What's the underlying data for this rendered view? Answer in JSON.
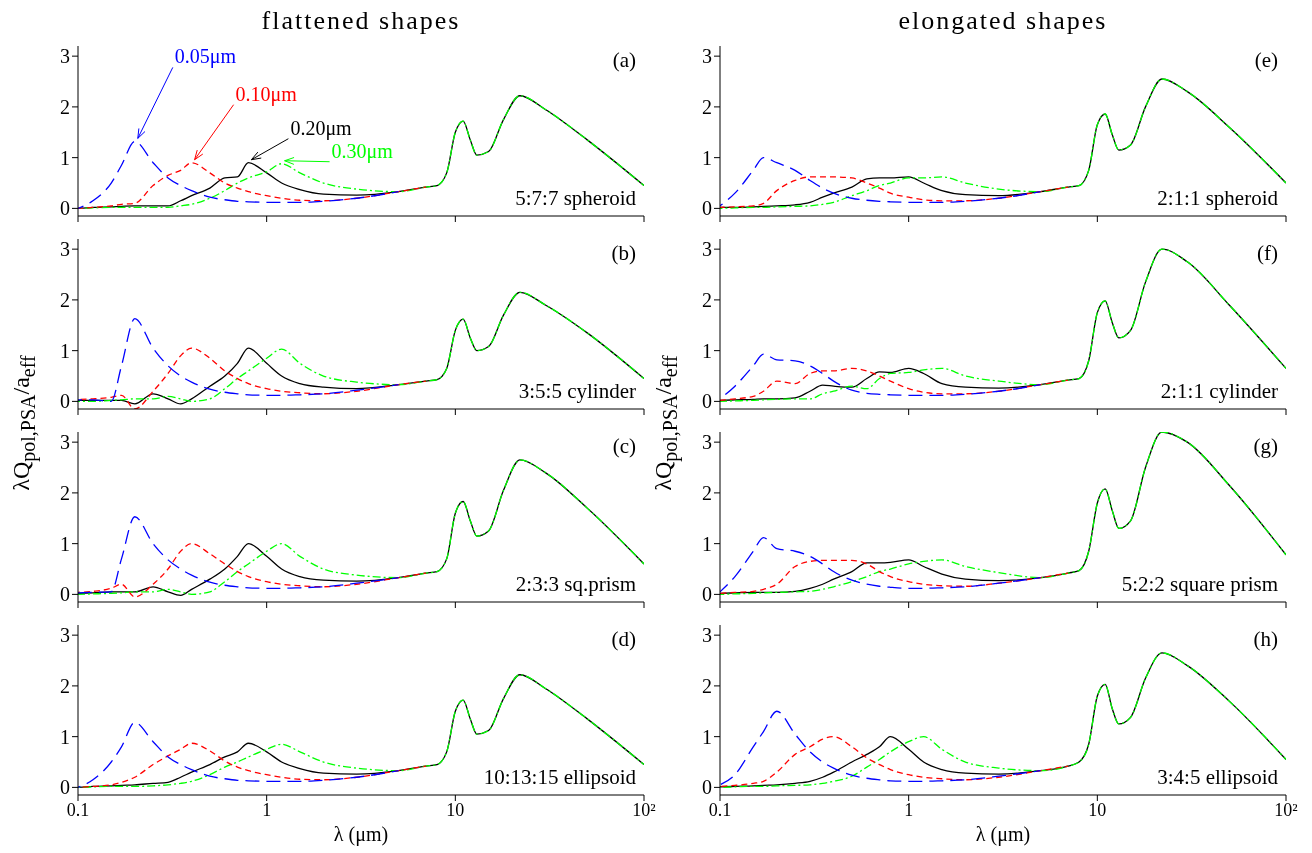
{
  "chart_data": [
    {
      "type": "line",
      "title": "flattened shapes",
      "annotations": [
        "(a)",
        "5:7:7 spheroid"
      ],
      "xlim": [
        0.1,
        100
      ],
      "xticks": [
        0.1,
        1,
        10,
        100
      ],
      "ylim": [
        -0.15,
        3.2
      ],
      "yticks": [
        0,
        1,
        2,
        3
      ],
      "log": "x",
      "tick_labels": "y",
      "marker": "none",
      "x": [
        0.1,
        0.12,
        0.15,
        0.17,
        0.2,
        0.25,
        0.3,
        0.35,
        0.4,
        0.5,
        0.6,
        0.7,
        0.8,
        1,
        1.2,
        1.5,
        2,
        3,
        5,
        7,
        8,
        9,
        10,
        11,
        12,
        13,
        15,
        18,
        22,
        30,
        50,
        100
      ],
      "series": [
        {
          "name": "0.05μm",
          "color": "#0000ff",
          "line_style": "dashed",
          "values": [
            0,
            0.15,
            0.5,
            0.85,
            1.32,
            0.9,
            0.6,
            0.45,
            0.35,
            0.22,
            0.17,
            0.14,
            0.13,
            0.12,
            0.12,
            0.12,
            0.14,
            0.2,
            0.33,
            null,
            null,
            null,
            null,
            null,
            null,
            null,
            null,
            null,
            null,
            null,
            null,
            null
          ]
        },
        {
          "name": "0.10μm",
          "color": "#ff0000",
          "line_style": "dashed",
          "values": [
            0,
            0.02,
            0.05,
            0.08,
            0.1,
            0.45,
            0.65,
            0.75,
            0.9,
            0.7,
            0.5,
            0.4,
            0.33,
            0.25,
            0.2,
            0.16,
            0.15,
            0.2,
            0.33,
            0.42,
            null,
            null,
            null,
            null,
            null,
            null,
            null,
            null,
            null,
            null,
            null,
            null
          ]
        },
        {
          "name": "0.20μm",
          "color": "#000000",
          "line_style": "solid",
          "values": [
            0,
            0.02,
            0.03,
            0.04,
            0.05,
            0.05,
            0.05,
            0.15,
            0.25,
            0.4,
            0.6,
            0.62,
            0.9,
            0.7,
            0.5,
            0.37,
            0.28,
            0.26,
            0.33,
            0.42,
            0.45,
            0.7,
            1.5,
            1.72,
            1.35,
            1.05,
            1.12,
            1.75,
            2.22,
            1.95,
            1.35,
            0.45
          ]
        },
        {
          "name": "0.30μm",
          "color": "#00ff00",
          "line_style": "dashed",
          "values": [
            0,
            0.01,
            0.02,
            0.02,
            0.02,
            0.02,
            0.02,
            0.05,
            0.08,
            0.2,
            0.35,
            0.5,
            0.6,
            0.72,
            0.88,
            0.7,
            0.5,
            0.38,
            0.33,
            0.42,
            0.45,
            0.7,
            1.5,
            1.72,
            1.35,
            1.05,
            1.12,
            1.75,
            2.22,
            1.95,
            1.35,
            0.45
          ]
        }
      ]
    },
    {
      "type": "line",
      "ylabel": "λQ$_{pol,PSA}$/a$_{eff}$",
      "annotations": [
        "(b)",
        "3:5:5 cylinder"
      ],
      "xlim": [
        0.1,
        100
      ],
      "xticks": [
        0.1,
        1,
        10,
        100
      ],
      "ylim": [
        -0.15,
        3.2
      ],
      "yticks": [
        0,
        1,
        2,
        3
      ],
      "log": "x",
      "tick_labels": "y",
      "marker": "none",
      "x": [
        0.1,
        0.12,
        0.15,
        0.17,
        0.2,
        0.25,
        0.3,
        0.35,
        0.4,
        0.5,
        0.6,
        0.7,
        0.8,
        1,
        1.2,
        1.5,
        2,
        3,
        5,
        7,
        8,
        9,
        10,
        11,
        12,
        13,
        15,
        18,
        22,
        30,
        50,
        100
      ],
      "series": [
        {
          "color": "#0000ff",
          "line_style": "dashed",
          "values": [
            0.03,
            0.03,
            0.0,
            0.7,
            1.63,
            1.05,
            0.7,
            0.5,
            0.38,
            0.24,
            0.18,
            0.15,
            0.13,
            0.12,
            0.12,
            0.13,
            0.15,
            0.22,
            0.33,
            null,
            null,
            null,
            null,
            null,
            null,
            null,
            null,
            null,
            null,
            null,
            null,
            null
          ]
        },
        {
          "color": "#ff0000",
          "line_style": "dashed",
          "values": [
            0.04,
            0.05,
            0.08,
            0.12,
            -0.15,
            0.2,
            0.55,
            0.9,
            1.05,
            0.85,
            0.6,
            0.45,
            0.35,
            0.25,
            0.2,
            0.17,
            0.15,
            0.2,
            0.33,
            0.4,
            null,
            null,
            null,
            null,
            null,
            null,
            null,
            null,
            null,
            null,
            null,
            null
          ]
        },
        {
          "color": "#000000",
          "line_style": "solid",
          "values": [
            0.02,
            0.02,
            0.02,
            0.02,
            -0.05,
            0.15,
            0.05,
            -0.05,
            0.05,
            0.3,
            0.5,
            0.75,
            1.05,
            0.75,
            0.5,
            0.35,
            0.28,
            0.25,
            0.33,
            0.4,
            0.43,
            0.65,
            1.4,
            1.62,
            1.25,
            1.0,
            1.08,
            1.7,
            2.15,
            1.9,
            1.35,
            0.45
          ]
        },
        {
          "color": "#00ff00",
          "line_style": "dashed",
          "values": [
            0,
            0,
            0.02,
            0.03,
            0.05,
            0.05,
            0.1,
            0.05,
            0,
            0.05,
            0.25,
            0.45,
            0.6,
            0.85,
            1.03,
            0.75,
            0.5,
            0.38,
            0.33,
            0.4,
            0.43,
            0.65,
            1.4,
            1.62,
            1.25,
            1.0,
            1.08,
            1.7,
            2.15,
            1.9,
            1.35,
            0.45
          ]
        }
      ]
    },
    {
      "type": "line",
      "annotations": [
        "(c)",
        "2:3:3 sq.prism"
      ],
      "xlim": [
        0.1,
        100
      ],
      "xticks": [
        0.1,
        1,
        10,
        100
      ],
      "ylim": [
        -0.15,
        3.2
      ],
      "yticks": [
        0,
        1,
        2,
        3
      ],
      "log": "x",
      "tick_labels": "y",
      "marker": "none",
      "x": [
        0.1,
        0.12,
        0.15,
        0.17,
        0.2,
        0.25,
        0.3,
        0.35,
        0.4,
        0.5,
        0.6,
        0.7,
        0.8,
        1,
        1.2,
        1.5,
        2,
        3,
        5,
        7,
        8,
        9,
        10,
        11,
        12,
        13,
        15,
        18,
        22,
        30,
        50,
        100
      ],
      "series": [
        {
          "color": "#0000ff",
          "line_style": "dashed",
          "values": [
            0.03,
            0.04,
            0.05,
            0.7,
            1.53,
            1.0,
            0.68,
            0.5,
            0.38,
            0.24,
            0.18,
            0.15,
            0.13,
            0.12,
            0.12,
            0.13,
            0.15,
            0.22,
            0.33,
            null,
            null,
            null,
            null,
            null,
            null,
            null,
            null,
            null,
            null,
            null,
            null,
            null
          ]
        },
        {
          "color": "#ff0000",
          "line_style": "dashed",
          "values": [
            0.04,
            0.06,
            0.12,
            0.2,
            -0.05,
            0.2,
            0.5,
            0.85,
            1.0,
            0.8,
            0.6,
            0.45,
            0.35,
            0.25,
            0.2,
            0.17,
            0.15,
            0.2,
            0.33,
            0.42,
            null,
            null,
            null,
            null,
            null,
            null,
            null,
            null,
            null,
            null,
            null,
            null
          ]
        },
        {
          "color": "#000000",
          "line_style": "solid",
          "values": [
            0.02,
            0.03,
            0.05,
            0.05,
            0.05,
            0.15,
            0.05,
            -0.02,
            0.1,
            0.3,
            0.5,
            0.75,
            1.0,
            0.75,
            0.5,
            0.35,
            0.28,
            0.26,
            0.33,
            0.42,
            0.45,
            0.7,
            1.6,
            1.83,
            1.45,
            1.15,
            1.25,
            2.05,
            2.65,
            2.4,
            1.7,
            0.6
          ]
        },
        {
          "color": "#00ff00",
          "line_style": "dashed",
          "values": [
            0,
            0.01,
            0.02,
            0.03,
            0.05,
            0.05,
            0.1,
            0.05,
            0,
            0.05,
            0.25,
            0.45,
            0.6,
            0.85,
            1.0,
            0.75,
            0.5,
            0.38,
            0.33,
            0.42,
            0.45,
            0.7,
            1.6,
            1.83,
            1.45,
            1.15,
            1.25,
            2.05,
            2.65,
            2.4,
            1.7,
            0.6
          ]
        }
      ]
    },
    {
      "type": "line",
      "xlabel": "λ (μm)",
      "annotations": [
        "(d)",
        "10:13:15 ellipsoid"
      ],
      "xlim": [
        0.1,
        100
      ],
      "xticks": [
        0.1,
        1,
        10,
        {
          "value": 100,
          "label": "10²"
        }
      ],
      "ylim": [
        -0.15,
        3.2
      ],
      "yticks": [
        0,
        1,
        2,
        3
      ],
      "log": "x",
      "marker": "none",
      "x": [
        0.1,
        0.12,
        0.15,
        0.17,
        0.2,
        0.25,
        0.3,
        0.35,
        0.4,
        0.5,
        0.6,
        0.7,
        0.8,
        1,
        1.2,
        1.5,
        2,
        3,
        5,
        7,
        8,
        9,
        10,
        11,
        12,
        13,
        15,
        18,
        22,
        30,
        50,
        100
      ],
      "series": [
        {
          "color": "#0000ff",
          "line_style": "dashed",
          "values": [
            0,
            0.15,
            0.5,
            0.8,
            1.28,
            0.9,
            0.6,
            0.45,
            0.35,
            0.22,
            0.17,
            0.14,
            0.13,
            0.12,
            0.12,
            0.12,
            0.14,
            0.2,
            0.33,
            null,
            null,
            null,
            null,
            null,
            null,
            null,
            null,
            null,
            null,
            null,
            null,
            null
          ]
        },
        {
          "color": "#ff0000",
          "line_style": "dashed",
          "values": [
            0,
            0.02,
            0.05,
            0.1,
            0.2,
            0.45,
            0.62,
            0.75,
            0.87,
            0.72,
            0.52,
            0.4,
            0.33,
            0.25,
            0.2,
            0.16,
            0.15,
            0.2,
            0.33,
            0.42,
            null,
            null,
            null,
            null,
            null,
            null,
            null,
            null,
            null,
            null,
            null,
            null
          ]
        },
        {
          "color": "#000000",
          "line_style": "solid",
          "values": [
            0,
            0.02,
            0.03,
            0.04,
            0.05,
            0.08,
            0.1,
            0.2,
            0.3,
            0.45,
            0.6,
            0.7,
            0.87,
            0.7,
            0.5,
            0.37,
            0.28,
            0.26,
            0.33,
            0.42,
            0.45,
            0.7,
            1.5,
            1.72,
            1.35,
            1.05,
            1.12,
            1.75,
            2.22,
            1.95,
            1.35,
            0.45
          ]
        },
        {
          "color": "#00ff00",
          "line_style": "dashed",
          "values": [
            0,
            0.01,
            0.02,
            0.02,
            0.02,
            0.03,
            0.05,
            0.08,
            0.12,
            0.25,
            0.4,
            0.5,
            0.6,
            0.75,
            0.85,
            0.7,
            0.5,
            0.38,
            0.33,
            0.42,
            0.45,
            0.7,
            1.5,
            1.72,
            1.35,
            1.05,
            1.12,
            1.75,
            2.22,
            1.95,
            1.35,
            0.45
          ]
        }
      ]
    },
    {
      "type": "line",
      "title": "elongated shapes",
      "annotations": [
        "(e)",
        "2:1:1 spheroid"
      ],
      "xlim": [
        0.1,
        100
      ],
      "xticks": [
        0.1,
        1,
        10,
        100
      ],
      "ylim": [
        -0.15,
        3.2
      ],
      "yticks": [
        0,
        1,
        2,
        3
      ],
      "log": "x",
      "tick_labels": "y",
      "marker": "none",
      "x": [
        0.1,
        0.12,
        0.15,
        0.17,
        0.2,
        0.25,
        0.3,
        0.35,
        0.4,
        0.5,
        0.6,
        0.7,
        0.8,
        1,
        1.2,
        1.5,
        2,
        3,
        5,
        7,
        8,
        9,
        10,
        11,
        12,
        13,
        15,
        18,
        22,
        30,
        50,
        100
      ],
      "series": [
        {
          "color": "#0000ff",
          "line_style": "dashed",
          "values": [
            0.05,
            0.3,
            0.75,
            1.0,
            0.9,
            0.75,
            0.55,
            0.4,
            0.3,
            0.2,
            0.16,
            0.14,
            0.13,
            0.12,
            0.12,
            0.12,
            0.14,
            0.2,
            0.33,
            null,
            null,
            null,
            null,
            null,
            null,
            null,
            null,
            null,
            null,
            null,
            null,
            null
          ]
        },
        {
          "color": "#ff0000",
          "line_style": "dashed",
          "values": [
            0.02,
            0.03,
            0.05,
            0.1,
            0.35,
            0.55,
            0.62,
            0.62,
            0.62,
            0.6,
            0.5,
            0.4,
            0.3,
            0.22,
            0.17,
            0.15,
            0.15,
            0.2,
            0.33,
            0.42,
            null,
            null,
            null,
            null,
            null,
            null,
            null,
            null,
            null,
            null,
            null,
            null
          ]
        },
        {
          "color": "#000000",
          "line_style": "solid",
          "values": [
            0.02,
            0.02,
            0.03,
            0.04,
            0.05,
            0.07,
            0.12,
            0.22,
            0.3,
            0.42,
            0.58,
            0.6,
            0.6,
            0.62,
            0.5,
            0.35,
            0.27,
            0.25,
            0.33,
            0.42,
            0.45,
            0.75,
            1.65,
            1.86,
            1.45,
            1.15,
            1.25,
            2.0,
            2.55,
            2.3,
            1.6,
            0.5
          ]
        },
        {
          "color": "#00ff00",
          "line_style": "dashed",
          "values": [
            0,
            0.01,
            0.02,
            0.02,
            0.03,
            0.04,
            0.05,
            0.08,
            0.12,
            0.25,
            0.35,
            0.45,
            0.5,
            0.6,
            0.6,
            0.62,
            0.5,
            0.38,
            0.33,
            0.42,
            0.45,
            0.75,
            1.65,
            1.86,
            1.45,
            1.15,
            1.25,
            2.0,
            2.55,
            2.3,
            1.6,
            0.5
          ]
        }
      ]
    },
    {
      "type": "line",
      "ylabel": "λQ$_{pol,PSA}$/a$_{eff}$",
      "annotations": [
        "(f)",
        "2:1:1 cylinder"
      ],
      "xlim": [
        0.1,
        100
      ],
      "xticks": [
        0.1,
        1,
        10,
        100
      ],
      "ylim": [
        -0.15,
        3.2
      ],
      "yticks": [
        0,
        1,
        2,
        3
      ],
      "log": "x",
      "tick_labels": "y",
      "marker": "none",
      "x": [
        0.1,
        0.12,
        0.15,
        0.17,
        0.2,
        0.25,
        0.3,
        0.35,
        0.4,
        0.5,
        0.6,
        0.7,
        0.8,
        1,
        1.2,
        1.5,
        2,
        3,
        5,
        7,
        8,
        9,
        10,
        11,
        12,
        13,
        15,
        18,
        22,
        30,
        50,
        100
      ],
      "series": [
        {
          "color": "#0000ff",
          "line_style": "dashed",
          "values": [
            0.05,
            0.3,
            0.7,
            0.93,
            0.82,
            0.8,
            0.7,
            0.55,
            0.4,
            0.22,
            0.16,
            0.14,
            0.13,
            0.12,
            0.12,
            0.12,
            0.14,
            0.2,
            0.33,
            null,
            null,
            null,
            null,
            null,
            null,
            null,
            null,
            null,
            null,
            null,
            null,
            null
          ]
        },
        {
          "color": "#ff0000",
          "line_style": "dashed",
          "values": [
            0.02,
            0.05,
            0.1,
            0.2,
            0.4,
            0.35,
            0.55,
            0.6,
            0.6,
            0.65,
            0.6,
            0.5,
            0.4,
            0.25,
            0.18,
            0.15,
            0.15,
            0.2,
            0.33,
            0.42,
            null,
            null,
            null,
            null,
            null,
            null,
            null,
            null,
            null,
            null,
            null,
            null
          ]
        },
        {
          "color": "#000000",
          "line_style": "solid",
          "values": [
            0.02,
            0.03,
            0.04,
            0.05,
            0.05,
            0.07,
            0.2,
            0.32,
            0.3,
            0.28,
            0.45,
            0.58,
            0.57,
            0.65,
            0.55,
            0.35,
            0.28,
            0.26,
            0.33,
            0.42,
            0.45,
            0.8,
            1.75,
            1.98,
            1.55,
            1.25,
            1.4,
            2.35,
            3.0,
            2.75,
            1.9,
            0.65
          ]
        },
        {
          "color": "#00ff00",
          "line_style": "dashed",
          "values": [
            0,
            0.01,
            0.02,
            0.03,
            0.04,
            0.05,
            0.05,
            0.15,
            0.2,
            0.3,
            0.25,
            0.45,
            0.55,
            0.57,
            0.62,
            0.65,
            0.5,
            0.4,
            0.33,
            0.42,
            0.45,
            0.8,
            1.75,
            1.98,
            1.55,
            1.25,
            1.4,
            2.35,
            3.0,
            2.75,
            1.9,
            0.65
          ]
        }
      ]
    },
    {
      "type": "line",
      "annotations": [
        "(g)",
        "5:2:2 square prism"
      ],
      "xlim": [
        0.1,
        100
      ],
      "xticks": [
        0.1,
        1,
        10,
        100
      ],
      "ylim": [
        -0.15,
        3.2
      ],
      "yticks": [
        0,
        1,
        2,
        3
      ],
      "log": "x",
      "tick_labels": "y",
      "marker": "none",
      "x": [
        0.1,
        0.12,
        0.15,
        0.17,
        0.2,
        0.25,
        0.3,
        0.35,
        0.4,
        0.5,
        0.6,
        0.7,
        0.8,
        1,
        1.2,
        1.5,
        2,
        3,
        5,
        7,
        8,
        9,
        10,
        11,
        12,
        13,
        15,
        18,
        22,
        30,
        50,
        100
      ],
      "series": [
        {
          "color": "#0000ff",
          "line_style": "dashed",
          "values": [
            0.05,
            0.35,
            0.85,
            1.12,
            0.9,
            0.85,
            0.75,
            0.6,
            0.45,
            0.28,
            0.2,
            0.16,
            0.14,
            0.12,
            0.12,
            0.13,
            0.15,
            0.22,
            0.33,
            null,
            null,
            null,
            null,
            null,
            null,
            null,
            null,
            null,
            null,
            null,
            null,
            null
          ]
        },
        {
          "color": "#ff0000",
          "line_style": "dashed",
          "values": [
            0.02,
            0.04,
            0.06,
            0.1,
            0.2,
            0.55,
            0.65,
            0.67,
            0.67,
            0.67,
            0.6,
            0.45,
            0.35,
            0.25,
            0.2,
            0.17,
            0.16,
            0.22,
            0.33,
            0.42,
            null,
            null,
            null,
            null,
            null,
            null,
            null,
            null,
            null,
            null,
            null,
            null
          ]
        },
        {
          "color": "#000000",
          "line_style": "solid",
          "values": [
            0.02,
            0.03,
            0.04,
            0.04,
            0.04,
            0.06,
            0.12,
            0.2,
            0.3,
            0.45,
            0.62,
            0.62,
            0.63,
            0.68,
            0.55,
            0.4,
            0.3,
            0.27,
            0.33,
            0.42,
            0.47,
            0.85,
            1.8,
            2.08,
            1.65,
            1.3,
            1.45,
            2.5,
            3.2,
            3.0,
            2.15,
            0.78
          ]
        },
        {
          "color": "#00ff00",
          "line_style": "dashed",
          "values": [
            0,
            0.01,
            0.02,
            0.03,
            0.04,
            0.05,
            0.06,
            0.1,
            0.15,
            0.25,
            0.35,
            0.45,
            0.5,
            0.6,
            0.65,
            0.68,
            0.55,
            0.43,
            0.33,
            0.42,
            0.47,
            0.85,
            1.8,
            2.08,
            1.65,
            1.3,
            1.45,
            2.5,
            3.2,
            3.0,
            2.15,
            0.78
          ]
        }
      ]
    },
    {
      "type": "line",
      "xlabel": "λ (μm)",
      "annotations": [
        "(h)",
        "3:4:5 ellipsoid"
      ],
      "xlim": [
        0.1,
        100
      ],
      "xticks": [
        0.1,
        1,
        10,
        {
          "value": 100,
          "label": "10²"
        }
      ],
      "ylim": [
        -0.15,
        3.2
      ],
      "yticks": [
        0,
        1,
        2,
        3
      ],
      "log": "x",
      "marker": "none",
      "x": [
        0.1,
        0.12,
        0.15,
        0.17,
        0.2,
        0.25,
        0.3,
        0.35,
        0.4,
        0.5,
        0.6,
        0.7,
        0.8,
        1,
        1.2,
        1.5,
        2,
        3,
        5,
        7,
        8,
        9,
        10,
        11,
        12,
        13,
        15,
        18,
        22,
        30,
        50,
        100
      ],
      "series": [
        {
          "color": "#0000ff",
          "line_style": "dashed",
          "values": [
            0.05,
            0.25,
            0.8,
            1.1,
            1.5,
            1.05,
            0.7,
            0.5,
            0.38,
            0.24,
            0.18,
            0.15,
            0.13,
            0.12,
            0.12,
            0.13,
            0.15,
            0.22,
            0.33,
            null,
            null,
            null,
            null,
            null,
            null,
            null,
            null,
            null,
            null,
            null,
            null,
            null
          ]
        },
        {
          "color": "#ff0000",
          "line_style": "dashed",
          "values": [
            0.02,
            0.04,
            0.08,
            0.12,
            0.3,
            0.65,
            0.8,
            0.95,
            1.0,
            0.8,
            0.58,
            0.45,
            0.35,
            0.25,
            0.2,
            0.17,
            0.15,
            0.2,
            0.33,
            0.42,
            null,
            null,
            null,
            null,
            null,
            null,
            null,
            null,
            null,
            null,
            null,
            null
          ]
        },
        {
          "color": "#000000",
          "line_style": "solid",
          "values": [
            0.01,
            0.02,
            0.03,
            0.04,
            0.05,
            0.08,
            0.12,
            0.2,
            0.3,
            0.5,
            0.65,
            0.8,
            1.0,
            0.75,
            0.5,
            0.35,
            0.28,
            0.26,
            0.33,
            0.42,
            0.5,
            0.85,
            1.8,
            2.03,
            1.55,
            1.25,
            1.38,
            2.15,
            2.65,
            2.4,
            1.7,
            0.55
          ]
        },
        {
          "color": "#00ff00",
          "line_style": "dashed",
          "values": [
            0,
            0.01,
            0.02,
            0.02,
            0.03,
            0.04,
            0.05,
            0.08,
            0.12,
            0.22,
            0.4,
            0.55,
            0.7,
            0.9,
            1.0,
            0.75,
            0.5,
            0.38,
            0.33,
            0.42,
            0.5,
            0.85,
            1.8,
            2.03,
            1.55,
            1.25,
            1.38,
            2.15,
            2.65,
            2.4,
            1.7,
            0.55
          ]
        }
      ]
    }
  ]
}
